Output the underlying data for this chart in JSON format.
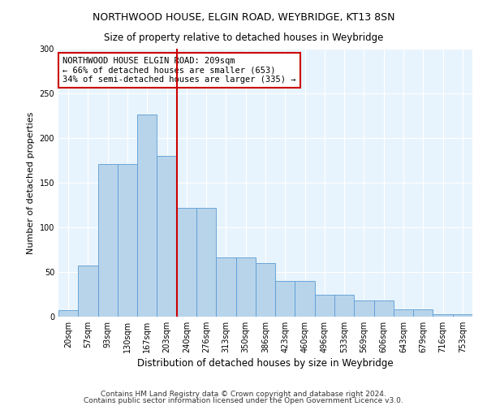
{
  "title": "NORTHWOOD HOUSE, ELGIN ROAD, WEYBRIDGE, KT13 8SN",
  "subtitle": "Size of property relative to detached houses in Weybridge",
  "xlabel": "Distribution of detached houses by size in Weybridge",
  "ylabel": "Number of detached properties",
  "bar_heights": [
    7,
    57,
    171,
    171,
    226,
    180,
    122,
    122,
    66,
    66,
    60,
    40,
    40,
    25,
    25,
    18,
    18,
    8,
    8,
    3,
    3
  ],
  "bin_labels": [
    "20sqm",
    "57sqm",
    "93sqm",
    "130sqm",
    "167sqm",
    "203sqm",
    "240sqm",
    "276sqm",
    "313sqm",
    "350sqm",
    "386sqm",
    "423sqm",
    "460sqm",
    "496sqm",
    "533sqm",
    "569sqm",
    "606sqm",
    "643sqm",
    "679sqm",
    "716sqm",
    "753sqm"
  ],
  "bar_color": "#b8d4ea",
  "bar_edge_color": "#5b9bd5",
  "vline_color": "#cc0000",
  "vline_x_index": 5.5,
  "annotation_text": "NORTHWOOD HOUSE ELGIN ROAD: 209sqm\n← 66% of detached houses are smaller (653)\n34% of semi-detached houses are larger (335) →",
  "annotation_box_facecolor": "white",
  "annotation_box_edgecolor": "#cc0000",
  "ylim": [
    0,
    300
  ],
  "yticks": [
    0,
    50,
    100,
    150,
    200,
    250,
    300
  ],
  "footer1": "Contains HM Land Registry data © Crown copyright and database right 2024.",
  "footer2": "Contains public sector information licensed under the Open Government Licence v3.0.",
  "fig_facecolor": "#ffffff",
  "axes_facecolor": "#e8f4fd",
  "grid_color": "#ffffff",
  "title_fontsize": 9,
  "subtitle_fontsize": 8.5,
  "xlabel_fontsize": 8.5,
  "ylabel_fontsize": 8,
  "tick_fontsize": 7,
  "annotation_fontsize": 7.5,
  "footer_fontsize": 6.5
}
